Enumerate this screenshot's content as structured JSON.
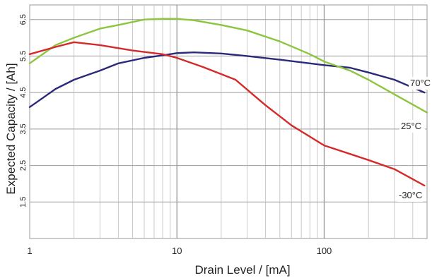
{
  "chart_data": {
    "type": "line",
    "xlabel": "Drain Level / [mA]",
    "ylabel": "Expected Capacity / [Ah]",
    "xscale": "log",
    "xlim": [
      1,
      500
    ],
    "ylim": [
      0.5,
      6.9
    ],
    "xticks": [
      {
        "value": 1,
        "label": "1"
      },
      {
        "value": 10,
        "label": "10"
      },
      {
        "value": 100,
        "label": "100"
      }
    ],
    "yticks": [
      {
        "value": 1.5,
        "label": "1.5"
      },
      {
        "value": 2.5,
        "label": "2.5"
      },
      {
        "value": 3.5,
        "label": "3.5"
      },
      {
        "value": 4.5,
        "label": "4.5"
      },
      {
        "value": 5.5,
        "label": "5.5"
      },
      {
        "value": 6.5,
        "label": "6.5"
      }
    ],
    "grid": true,
    "series": [
      {
        "name": "70°C",
        "color": "#2b2a7a",
        "x": [
          1,
          1.5,
          2,
          3,
          4,
          6,
          8,
          10,
          13,
          20,
          30,
          50,
          80,
          100,
          150,
          200,
          300,
          480
        ],
        "y": [
          4.1,
          4.6,
          4.85,
          5.1,
          5.3,
          5.45,
          5.52,
          5.58,
          5.6,
          5.57,
          5.5,
          5.4,
          5.3,
          5.25,
          5.18,
          5.05,
          4.85,
          4.5
        ]
      },
      {
        "name": "25°C",
        "color": "#8cc63f",
        "x": [
          1,
          1.5,
          2,
          3,
          4,
          6,
          8,
          10,
          13,
          20,
          30,
          50,
          80,
          100,
          150,
          200,
          300,
          500
        ],
        "y": [
          5.3,
          5.8,
          6.0,
          6.25,
          6.35,
          6.5,
          6.52,
          6.52,
          6.48,
          6.35,
          6.2,
          5.9,
          5.55,
          5.35,
          5.1,
          4.85,
          4.45,
          3.95
        ]
      },
      {
        "name": "-30°C",
        "color": "#d42a2a",
        "x": [
          1,
          1.5,
          2,
          3,
          5,
          8,
          10,
          15,
          25,
          40,
          60,
          100,
          200,
          300,
          480
        ],
        "y": [
          5.55,
          5.75,
          5.88,
          5.8,
          5.65,
          5.55,
          5.45,
          5.2,
          4.85,
          4.15,
          3.6,
          3.05,
          2.65,
          2.4,
          1.95
        ]
      }
    ]
  }
}
